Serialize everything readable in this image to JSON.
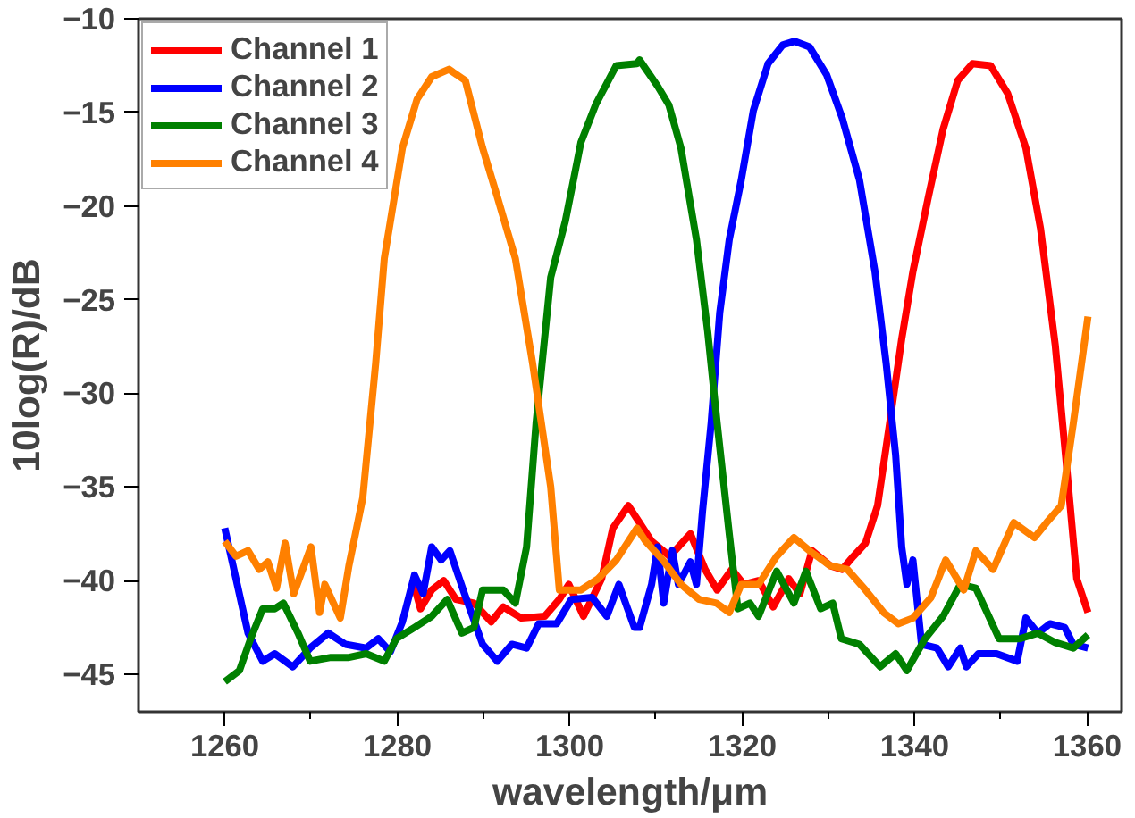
{
  "chart_data": {
    "type": "line",
    "xlabel": "wavelength/μm",
    "ylabel": "10log(R)/dB",
    "xlim": [
      1250,
      1364
    ],
    "ylim": [
      -47,
      -10
    ],
    "xticks": [
      1260,
      1280,
      1300,
      1320,
      1340,
      1360
    ],
    "yticks": [
      -45,
      -40,
      -35,
      -30,
      -25,
      -20,
      -15,
      -10
    ],
    "grid": false,
    "legend": "top left",
    "line_style": "solid",
    "marker": "none",
    "series": [
      {
        "name": "Channel 1",
        "color": "#ff0000",
        "x": [
          1281.8,
          1282.7,
          1284,
          1285.4,
          1286.8,
          1288.9,
          1290.9,
          1292.3,
          1294.4,
          1297.1,
          1298.8,
          1299.9,
          1301.6,
          1303.7,
          1305,
          1306.8,
          1308.1,
          1309.5,
          1311.6,
          1314,
          1315.7,
          1317.1,
          1318.8,
          1320.2,
          1321.9,
          1323.6,
          1325.4,
          1326.7,
          1328.1,
          1330.2,
          1331.6,
          1332.9,
          1334.3,
          1335.7,
          1337.1,
          1338.5,
          1339.8,
          1341.6,
          1343.3,
          1345,
          1346.7,
          1348.8,
          1350.8,
          1352.9,
          1354.6,
          1356.3,
          1357.7,
          1358.8,
          1360.1
        ],
        "values": [
          -40,
          -41.5,
          -40.5,
          -40,
          -41,
          -41.2,
          -42.2,
          -41.4,
          -42,
          -41.9,
          -41,
          -40.2,
          -41.9,
          -39.9,
          -37.2,
          -36,
          -36.9,
          -37.9,
          -38.7,
          -37.5,
          -39.4,
          -40.5,
          -39.4,
          -40.2,
          -40,
          -41.4,
          -39.9,
          -40.7,
          -38.4,
          -39.2,
          -39.4,
          -38.7,
          -38,
          -36,
          -31.6,
          -27.1,
          -23.5,
          -19.5,
          -15.9,
          -13.3,
          -12.4,
          -12.5,
          -14,
          -16.9,
          -21.2,
          -27.4,
          -34.3,
          -39.9,
          -41.7
        ]
      },
      {
        "name": "Channel 2",
        "color": "#0000ff",
        "x": [
          1260,
          1261.3,
          1262.7,
          1264.4,
          1265.8,
          1267.9,
          1269.9,
          1272,
          1274,
          1276.4,
          1277.8,
          1279.2,
          1280.6,
          1282,
          1283,
          1284,
          1285.1,
          1286.1,
          1287.8,
          1289.9,
          1291.6,
          1293.3,
          1295,
          1296.4,
          1298.5,
          1300.2,
          1302.6,
          1304.3,
          1305.7,
          1307.5,
          1308.1,
          1309.5,
          1310.2,
          1310.9,
          1311.9,
          1312.6,
          1314,
          1314.7,
          1315.4,
          1316.4,
          1317.4,
          1318.5,
          1319.9,
          1321.3,
          1323,
          1324.7,
          1326.1,
          1327.8,
          1329.8,
          1331.6,
          1333.6,
          1335.4,
          1336.7,
          1337.8,
          1338.5,
          1339.1,
          1339.8,
          1340.8,
          1342.6,
          1343.9,
          1345.3,
          1346,
          1347.4,
          1349.5,
          1351.9,
          1352.9,
          1354.3,
          1355.7,
          1357.4,
          1358.4,
          1360.1
        ],
        "values": [
          -37.2,
          -39.9,
          -42.8,
          -44.3,
          -43.9,
          -44.6,
          -43.6,
          -42.8,
          -43.4,
          -43.6,
          -43.1,
          -43.8,
          -42.2,
          -39.7,
          -40.7,
          -38.2,
          -38.9,
          -38.4,
          -40.7,
          -43.4,
          -44.3,
          -43.4,
          -43.6,
          -42.3,
          -42.3,
          -41,
          -40.9,
          -41.9,
          -40.2,
          -42.5,
          -42.5,
          -40.2,
          -38.2,
          -41.2,
          -38.4,
          -40.2,
          -39,
          -40.2,
          -36.3,
          -31.6,
          -25.7,
          -21.8,
          -18.6,
          -14.9,
          -12.4,
          -11.4,
          -11.2,
          -11.5,
          -13,
          -15.3,
          -18.6,
          -23.5,
          -28.4,
          -33.3,
          -38.2,
          -40.2,
          -38.9,
          -43.4,
          -43.6,
          -44.6,
          -43.6,
          -44.6,
          -43.9,
          -43.9,
          -44.3,
          -42,
          -42.8,
          -42.3,
          -42.5,
          -43.4,
          -43.6
        ]
      },
      {
        "name": "Channel 3",
        "color": "#008000",
        "x": [
          1260,
          1261.7,
          1263,
          1264.4,
          1265.8,
          1266.8,
          1268.5,
          1269.9,
          1272.3,
          1274.4,
          1276.4,
          1278.5,
          1279.9,
          1282,
          1284,
          1285.8,
          1287.5,
          1288.9,
          1289.9,
          1292.3,
          1293.7,
          1295,
          1296.1,
          1297.8,
          1299.5,
          1301.3,
          1303,
          1305.4,
          1307.8,
          1308.1,
          1310.2,
          1311.5,
          1312.9,
          1314.7,
          1316,
          1317.1,
          1318.5,
          1319.5,
          1320.9,
          1321.9,
          1324,
          1326,
          1327.4,
          1329.1,
          1330.5,
          1331.5,
          1333.6,
          1336,
          1337.8,
          1339.1,
          1341.2,
          1343.3,
          1345.3,
          1347.1,
          1349.8,
          1352.2,
          1354.3,
          1356.3,
          1358.4,
          1360.1
        ],
        "values": [
          -45.4,
          -44.8,
          -43.1,
          -41.5,
          -41.5,
          -41.2,
          -42.8,
          -44.3,
          -44.1,
          -44.1,
          -43.9,
          -44.3,
          -43.1,
          -42.5,
          -41.9,
          -41,
          -42.8,
          -42.5,
          -40.5,
          -40.5,
          -41.2,
          -38.2,
          -31.6,
          -23.8,
          -20.8,
          -16.6,
          -14.6,
          -12.5,
          -12.4,
          -12.2,
          -13.6,
          -14.6,
          -16.9,
          -21.8,
          -26.7,
          -31.6,
          -37.5,
          -41.5,
          -41.2,
          -41.9,
          -39.5,
          -41.2,
          -39.5,
          -41.5,
          -41.2,
          -43.1,
          -43.4,
          -44.6,
          -43.9,
          -44.8,
          -43.1,
          -41.9,
          -40.2,
          -40.4,
          -43.1,
          -43.1,
          -42.8,
          -43.3,
          -43.6,
          -42.9
        ]
      },
      {
        "name": "Channel 4",
        "color": "#ff8000",
        "x": [
          1260,
          1261.3,
          1262.7,
          1264,
          1265,
          1266,
          1267,
          1268,
          1270,
          1271,
          1271.6,
          1273.4,
          1274.4,
          1276,
          1277.5,
          1278.5,
          1280.6,
          1282.3,
          1284,
          1286,
          1287.9,
          1289.9,
          1291.6,
          1293.7,
          1295.7,
          1297.8,
          1298.8,
          1301.3,
          1303.3,
          1305.4,
          1307.8,
          1308.8,
          1310.8,
          1312.9,
          1315,
          1317,
          1318.5,
          1319.9,
          1321.9,
          1324,
          1326,
          1327.8,
          1330.2,
          1332.2,
          1334.3,
          1336.4,
          1338.1,
          1339.8,
          1341.9,
          1343.6,
          1345.7,
          1347.1,
          1349.1,
          1351.5,
          1353.9,
          1355.3,
          1357,
          1358.4,
          1360.1
        ],
        "values": [
          -37.9,
          -38.7,
          -38.4,
          -39.4,
          -39,
          -40.4,
          -38,
          -40.7,
          -38.2,
          -41.7,
          -40.2,
          -42,
          -39.2,
          -35.6,
          -28.4,
          -22.8,
          -16.9,
          -14.3,
          -13.1,
          -12.7,
          -13.3,
          -16.9,
          -19.5,
          -22.8,
          -28.4,
          -35,
          -40.5,
          -40.5,
          -39.9,
          -38.9,
          -37.2,
          -37.9,
          -38.9,
          -40.2,
          -41,
          -41.2,
          -41.7,
          -40.2,
          -40.2,
          -38.7,
          -37.7,
          -38.4,
          -39.2,
          -39.4,
          -40.5,
          -41.7,
          -42.3,
          -42,
          -40.9,
          -38.9,
          -40.5,
          -38.4,
          -39.4,
          -36.9,
          -37.7,
          -36.9,
          -36,
          -31.6,
          -25.9
        ]
      }
    ]
  }
}
